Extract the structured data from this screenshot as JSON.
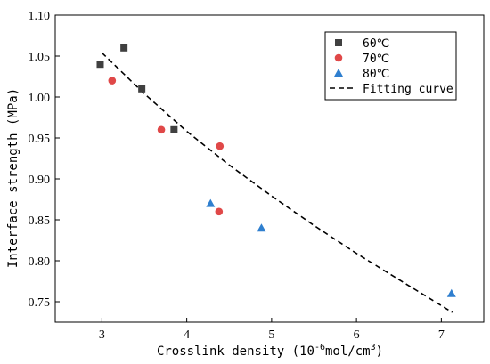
{
  "chart_data": {
    "type": "scatter",
    "title": "",
    "xlabel_prefix": "Crosslink density (10",
    "xlabel_exp1": "-6",
    "xlabel_mid": "mol/cm",
    "xlabel_exp2": "3",
    "xlabel_suffix": ")",
    "ylabel": "Interface strength (MPa)",
    "xlim": [
      2.45,
      7.5
    ],
    "ylim": [
      0.725,
      1.1
    ],
    "xticks": [
      3,
      4,
      5,
      6,
      7
    ],
    "yticks": [
      0.75,
      0.8,
      0.85,
      0.9,
      0.95,
      1.0,
      1.05,
      1.1
    ],
    "grid": false,
    "legend_position": "top-right",
    "series": [
      {
        "name": "60℃",
        "marker": "square",
        "color": "#404040",
        "points": [
          [
            2.98,
            1.04
          ],
          [
            3.26,
            1.06
          ],
          [
            3.47,
            1.01
          ],
          [
            3.85,
            0.96
          ]
        ]
      },
      {
        "name": "70℃",
        "marker": "circle",
        "color": "#e04848",
        "points": [
          [
            3.12,
            1.02
          ],
          [
            3.7,
            0.96
          ],
          [
            4.39,
            0.94
          ],
          [
            4.38,
            0.86
          ]
        ]
      },
      {
        "name": "80℃",
        "marker": "triangle",
        "color": "#2f7fcf",
        "points": [
          [
            4.28,
            0.87
          ],
          [
            4.88,
            0.84
          ],
          [
            7.12,
            0.76
          ]
        ]
      }
    ],
    "fit": {
      "name": "Fitting curve",
      "style": "dashed",
      "color": "#000000",
      "points": [
        [
          3.0,
          1.054
        ],
        [
          3.5,
          1.004
        ],
        [
          4.0,
          0.958
        ],
        [
          4.5,
          0.917
        ],
        [
          5.0,
          0.879
        ],
        [
          5.5,
          0.843
        ],
        [
          6.0,
          0.809
        ],
        [
          6.5,
          0.777
        ],
        [
          7.13,
          0.737
        ]
      ]
    }
  }
}
